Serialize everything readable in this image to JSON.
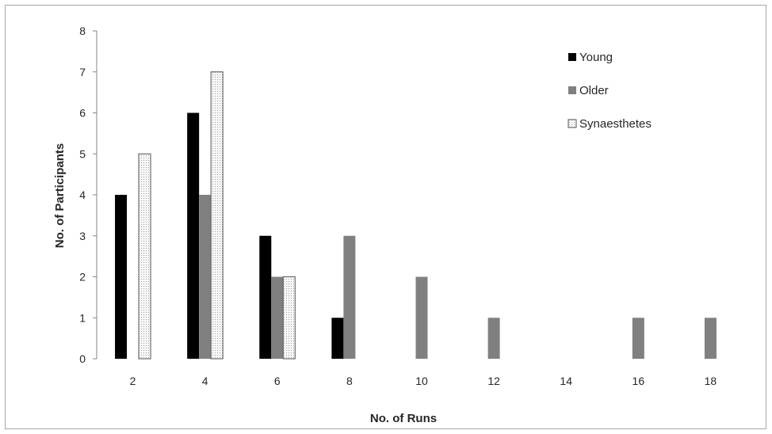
{
  "chart_data": {
    "type": "bar",
    "title": "",
    "xlabel": "No. of Runs",
    "ylabel": "No. of Participants",
    "categories": [
      "2",
      "4",
      "6",
      "8",
      "10",
      "12",
      "14",
      "16",
      "18"
    ],
    "ylim": [
      0,
      8
    ],
    "yticks": [
      "0",
      "1",
      "2",
      "3",
      "4",
      "5",
      "6",
      "7",
      "8"
    ],
    "grid": false,
    "legend_position": "top-right",
    "series": [
      {
        "name": "Young",
        "values": [
          4,
          6,
          3,
          1,
          0,
          0,
          0,
          0,
          0
        ],
        "color": "#000000",
        "pattern": "solid"
      },
      {
        "name": "Older",
        "values": [
          0,
          4,
          2,
          3,
          2,
          1,
          0,
          1,
          1
        ],
        "color": "#808080",
        "pattern": "solid"
      },
      {
        "name": "Synaesthetes",
        "values": [
          5,
          7,
          2,
          0,
          0,
          0,
          0,
          0,
          0
        ],
        "color": "#f2f2f2",
        "pattern": "dotted"
      }
    ]
  }
}
